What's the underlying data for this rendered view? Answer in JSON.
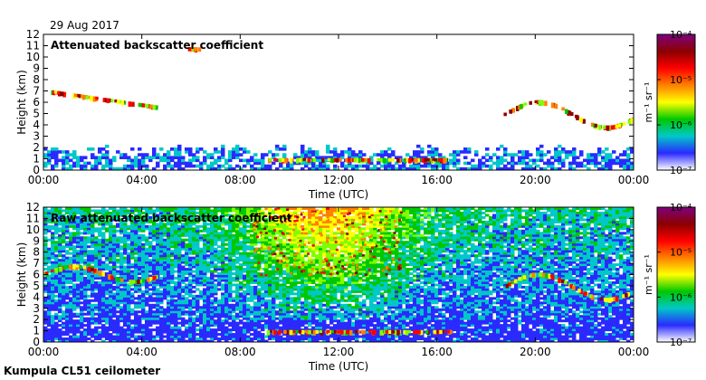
{
  "date": "29 Aug 2017",
  "footer": "Kumpula CL51 ceilometer",
  "chart_data": [
    {
      "type": "heatmap",
      "title": "Attenuated backscatter coefficient",
      "xlabel": "Time (UTC)",
      "ylabel": "Height (km)",
      "xlim": [
        0,
        24
      ],
      "ylim": [
        0,
        12
      ],
      "xticks": [
        0,
        4,
        8,
        12,
        16,
        20,
        24
      ],
      "xtick_labels": [
        "00:00",
        "04:00",
        "08:00",
        "12:00",
        "16:00",
        "20:00",
        "00:00"
      ],
      "yticks": [
        0,
        1,
        2,
        3,
        4,
        5,
        6,
        7,
        8,
        9,
        10,
        11,
        12
      ],
      "colorbar": {
        "label": "m⁻¹ sr⁻¹",
        "scale": "log",
        "range": [
          1e-07,
          0.0001
        ],
        "tick_labels": [
          "10⁻⁴",
          "10⁻⁵",
          "10⁻⁶",
          "10⁻⁷"
        ],
        "colors": [
          "#ffffff",
          "#2a2aff",
          "#00c8c8",
          "#00c800",
          "#ffff00",
          "#ff8000",
          "#ff0000",
          "#8b0000",
          "#7f007f"
        ]
      },
      "features": [
        {
          "kind": "boundary_layer",
          "t": [
            0,
            24
          ],
          "h": [
            0,
            2
          ]
        },
        {
          "kind": "cloud_layer",
          "t": [
            0.3,
            4.6
          ],
          "h": [
            5.2,
            6.9
          ]
        },
        {
          "kind": "cloud_layer",
          "t": [
            18.7,
            24
          ],
          "h": [
            3.5,
            6.3
          ]
        },
        {
          "kind": "low_cloud",
          "t": [
            9,
            16.5
          ],
          "h": [
            0.3,
            1.5
          ]
        },
        {
          "kind": "high_cloud",
          "t": [
            5.8,
            6.3
          ],
          "h": [
            10.4,
            11.0
          ]
        }
      ]
    },
    {
      "type": "heatmap",
      "title": "Raw attenuated backscatter coefficient",
      "xlabel": "Time (UTC)",
      "ylabel": "Height (km)",
      "xlim": [
        0,
        24
      ],
      "ylim": [
        0,
        12
      ],
      "xticks": [
        0,
        4,
        8,
        12,
        16,
        20,
        24
      ],
      "xtick_labels": [
        "00:00",
        "04:00",
        "08:00",
        "12:00",
        "16:00",
        "20:00",
        "00:00"
      ],
      "yticks": [
        0,
        1,
        2,
        3,
        4,
        5,
        6,
        7,
        8,
        9,
        10,
        11,
        12
      ],
      "colorbar": {
        "label": "m⁻¹ sr⁻¹",
        "scale": "log",
        "range": [
          1e-07,
          0.0001
        ],
        "tick_labels": [
          "10⁻⁴",
          "10⁻⁵",
          "10⁻⁶",
          "10⁻⁷"
        ],
        "colors": [
          "#ffffff",
          "#2a2aff",
          "#00c8c8",
          "#00c800",
          "#ffff00",
          "#ff8000",
          "#ff0000",
          "#8b0000",
          "#7f007f"
        ]
      },
      "features": [
        {
          "kind": "noise_background",
          "t": [
            0,
            24
          ],
          "h": [
            0,
            12
          ]
        },
        {
          "kind": "noise_peak",
          "t": [
            8.5,
            14.5
          ],
          "h": [
            6,
            12
          ]
        },
        {
          "kind": "cloud_layer",
          "t": [
            0,
            4.6
          ],
          "h": [
            5.2,
            6.9
          ]
        },
        {
          "kind": "cloud_layer",
          "t": [
            18.7,
            24
          ],
          "h": [
            3.5,
            6.3
          ]
        },
        {
          "kind": "low_cloud",
          "t": [
            9,
            16.5
          ],
          "h": [
            0.3,
            1.5
          ]
        }
      ]
    }
  ]
}
